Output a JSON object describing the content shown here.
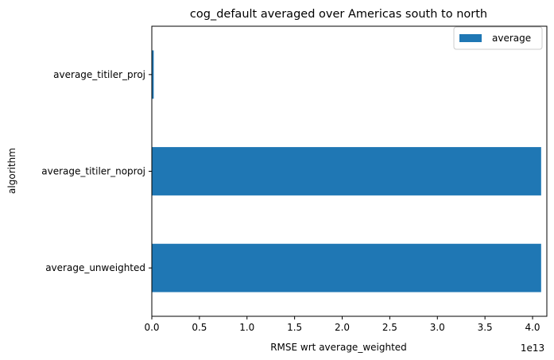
{
  "chart_data": {
    "type": "bar",
    "orientation": "horizontal",
    "title": "cog_default averaged over Americas south to north",
    "xlabel": "RMSE wrt average_weighted",
    "ylabel": "algorithm",
    "x_offset_label": "1e13",
    "x_scale_factor": 10000000000000.0,
    "xlim": [
      0,
      4.15
    ],
    "xticks": [
      "0.0",
      "0.5",
      "1.0",
      "1.5",
      "2.0",
      "2.5",
      "3.0",
      "3.5",
      "4.0"
    ],
    "categories": [
      "average_unweighted",
      "average_titiler_noproj",
      "average_titiler_proj"
    ],
    "series": [
      {
        "name": "average",
        "values": [
          4.09,
          4.09,
          0.02
        ],
        "color": "#1f77b4"
      }
    ],
    "legend_position": "top-right",
    "grid": false
  }
}
